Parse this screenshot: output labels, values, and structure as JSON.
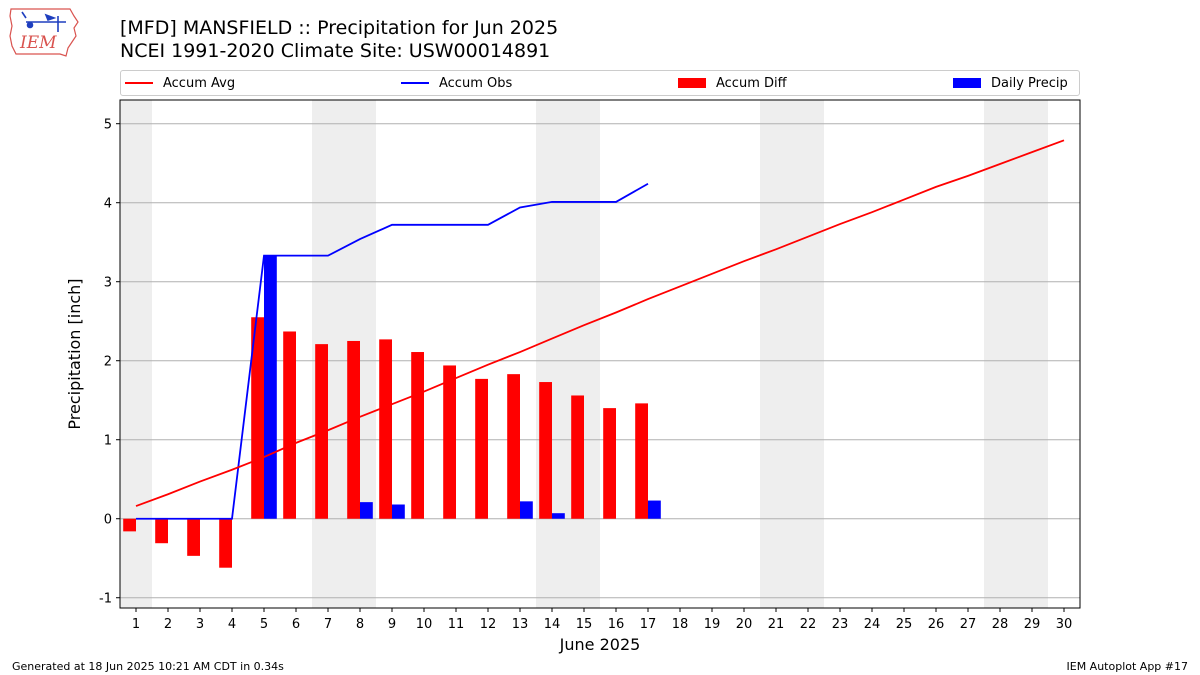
{
  "header": {
    "title": "[MFD] MANSFIELD :: Precipitation for Jun 2025",
    "subtitle": "NCEI 1991-2020 Climate Site: USW00014891",
    "logo_text": "IEM"
  },
  "legend": {
    "items": [
      {
        "label": "Accum Avg",
        "kind": "line",
        "color": "#ff0000"
      },
      {
        "label": "Accum Obs",
        "kind": "line",
        "color": "#0000ff"
      },
      {
        "label": "Accum Diff",
        "kind": "patch",
        "color": "#ff0000"
      },
      {
        "label": "Daily Precip",
        "kind": "patch",
        "color": "#0000ff"
      }
    ],
    "placement": "top"
  },
  "footer": {
    "left": "Generated at 18 Jun 2025 10:21 AM CDT in 0.34s",
    "right": "IEM Autoplot App #17"
  },
  "chart_data": {
    "type": "bar",
    "xlabel": "June 2025",
    "ylabel": "Precipitation [inch]",
    "xlim": [
      0.5,
      30.5
    ],
    "ylim": [
      -1.13,
      5.3
    ],
    "y_ticks": [
      -1,
      0,
      1,
      2,
      3,
      4,
      5
    ],
    "x_ticks": [
      1,
      2,
      3,
      4,
      5,
      6,
      7,
      8,
      9,
      10,
      11,
      12,
      13,
      14,
      15,
      16,
      17,
      18,
      19,
      20,
      21,
      22,
      23,
      24,
      25,
      26,
      27,
      28,
      29,
      30
    ],
    "grid": "y",
    "weekend_shading": [
      [
        0.5,
        1.5
      ],
      [
        6.5,
        8.5
      ],
      [
        13.5,
        15.5
      ],
      [
        20.5,
        22.5
      ],
      [
        27.5,
        29.5
      ]
    ],
    "colors": {
      "avg": "#ff0000",
      "obs": "#0000ff",
      "diff": "#ff0000",
      "daily": "#0000ff",
      "shade": "#eeeeee",
      "grid": "#b0b0b0"
    },
    "series": [
      {
        "name": "Accum Avg",
        "type": "line",
        "x": [
          1,
          2,
          3,
          4,
          5,
          6,
          7,
          8,
          9,
          10,
          11,
          12,
          13,
          14,
          15,
          16,
          17,
          18,
          19,
          20,
          21,
          22,
          23,
          24,
          25,
          26,
          27,
          28,
          29,
          30
        ],
        "values": [
          0.16,
          0.31,
          0.47,
          0.62,
          0.78,
          0.96,
          1.12,
          1.29,
          1.45,
          1.61,
          1.78,
          1.95,
          2.11,
          2.28,
          2.45,
          2.61,
          2.78,
          2.94,
          3.1,
          3.26,
          3.41,
          3.57,
          3.73,
          3.88,
          4.04,
          4.2,
          4.34,
          4.49,
          4.64,
          4.79
        ]
      },
      {
        "name": "Accum Obs",
        "type": "line",
        "x": [
          1,
          2,
          3,
          4,
          5,
          6,
          7,
          8,
          9,
          10,
          11,
          12,
          13,
          14,
          15,
          16,
          17
        ],
        "values": [
          0,
          0,
          0,
          0,
          3.33,
          3.33,
          3.33,
          3.54,
          3.72,
          3.72,
          3.72,
          3.72,
          3.94,
          4.01,
          4.01,
          4.01,
          4.24
        ]
      },
      {
        "name": "Accum Diff",
        "type": "bar",
        "x": [
          1,
          2,
          3,
          4,
          5,
          6,
          7,
          8,
          9,
          10,
          11,
          12,
          13,
          14,
          15,
          16,
          17
        ],
        "values": [
          -0.16,
          -0.31,
          -0.47,
          -0.62,
          2.55,
          2.37,
          2.21,
          2.25,
          2.27,
          2.11,
          1.94,
          1.77,
          1.83,
          1.73,
          1.56,
          1.4,
          1.46
        ]
      },
      {
        "name": "Daily Precip",
        "type": "bar",
        "x": [
          1,
          2,
          3,
          4,
          5,
          6,
          7,
          8,
          9,
          10,
          11,
          12,
          13,
          14,
          15,
          16,
          17
        ],
        "values": [
          0,
          0,
          0,
          0,
          3.33,
          0,
          0,
          0.21,
          0.18,
          0,
          0,
          0,
          0.22,
          0.07,
          0,
          0,
          0.23
        ]
      }
    ]
  }
}
